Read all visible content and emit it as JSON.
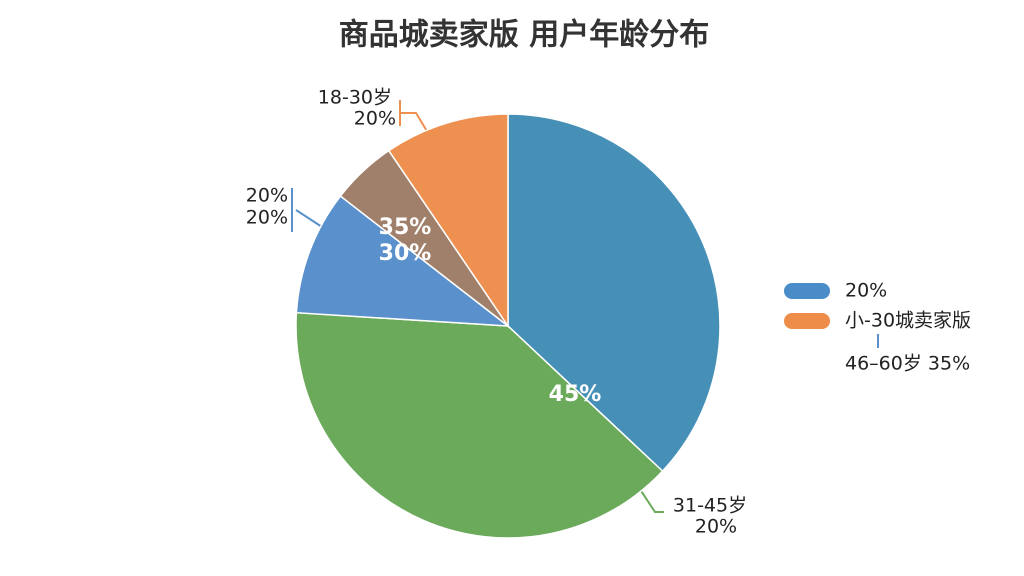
{
  "chart_data": {
    "type": "pie",
    "title": "商品城卖家版 用户年龄分布",
    "values": [
      37,
      39,
      9.5,
      5,
      9.5
    ],
    "colors": [
      "#4690b8",
      "#6aaa5a",
      "#5a90cc",
      "#a0806a",
      "#ee9050"
    ],
    "legend": [
      {
        "name": "20%",
        "color": "#4a8cc8"
      },
      {
        "name": "小-30城卖家版",
        "color": "#ee8c4a"
      }
    ],
    "annotations": [
      "18-30岁",
      "20%",
      "20%",
      "20%",
      "35%",
      "30%",
      "45%",
      "31-45岁",
      "20%",
      "46–60岁 35%"
    ]
  }
}
